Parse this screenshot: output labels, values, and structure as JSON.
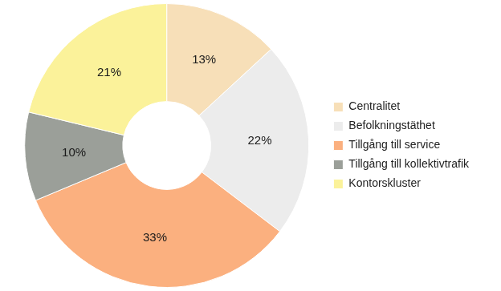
{
  "chart_data": {
    "type": "doughnut",
    "categories": [
      "Centralitet",
      "Befolkningstäthet",
      "Tillgång till service",
      "Tillgång till kollektivtrafik",
      "Kontorskluster"
    ],
    "values": [
      13,
      22,
      33,
      10,
      21
    ],
    "value_labels": [
      "13%",
      "22%",
      "33%",
      "10%",
      "21%"
    ],
    "colors": [
      "#f7dfb8",
      "#ececec",
      "#fbb07f",
      "#9b9f99",
      "#fbf29a"
    ],
    "data_labels": true,
    "legend": "right"
  }
}
